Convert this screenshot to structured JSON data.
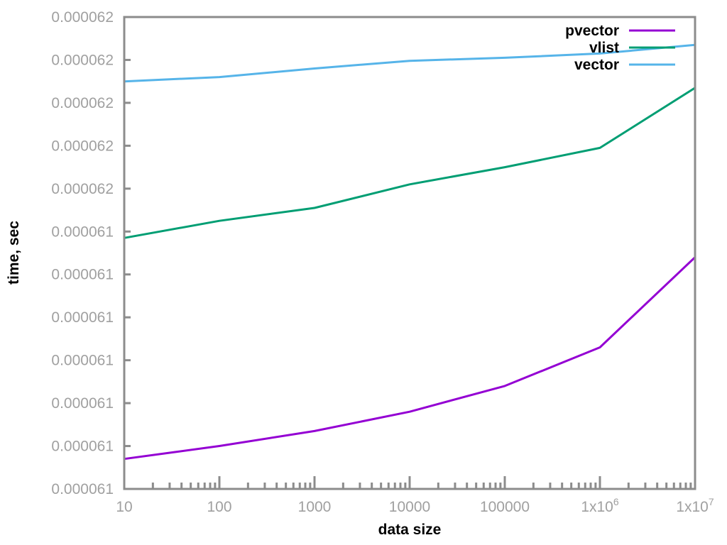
{
  "chart_data": {
    "type": "line",
    "title": "",
    "xlabel": "data size",
    "ylabel": "time, sec",
    "x_scale": "log",
    "xlim": [
      10,
      10000000
    ],
    "x": [
      10,
      100,
      1000,
      10000,
      100000,
      1000000,
      10000000
    ],
    "x_ticks": [
      {
        "value": 10,
        "base": "10",
        "exp": ""
      },
      {
        "value": 100,
        "base": "100",
        "exp": ""
      },
      {
        "value": 1000,
        "base": "1000",
        "exp": ""
      },
      {
        "value": 10000,
        "base": "10000",
        "exp": ""
      },
      {
        "value": 100000,
        "base": "100000",
        "exp": ""
      },
      {
        "value": 1000000,
        "base": "1x10",
        "exp": "6"
      },
      {
        "value": 10000000,
        "base": "1x10",
        "exp": "7"
      }
    ],
    "y_tick_labels": [
      "0.000061",
      "0.000061",
      "0.000061",
      "0.000061",
      "0.000061",
      "0.000061",
      "0.000061",
      "0.000062",
      "0.000062",
      "0.000062",
      "0.000062",
      "0.000062"
    ],
    "y_ticks": [
      0,
      1,
      2,
      3,
      4,
      5,
      6,
      7,
      8,
      9,
      10,
      11
    ],
    "ylim": [
      0,
      11
    ],
    "y_note": "y values are in tick-interval units above the lowest tick (tick labels are rounded and identical)",
    "grid": false,
    "legend_position": "top-right",
    "series": [
      {
        "name": "pvector",
        "color": "#9400d3",
        "values": [
          0.7,
          1.0,
          1.35,
          1.8,
          2.4,
          3.3,
          5.4
        ]
      },
      {
        "name": "vlist",
        "color": "#009e73",
        "values": [
          5.85,
          6.25,
          6.55,
          7.1,
          7.5,
          7.95,
          9.35
        ]
      },
      {
        "name": "vector",
        "color": "#56b4e9",
        "values": [
          9.5,
          9.6,
          9.8,
          9.98,
          10.05,
          10.15,
          10.35
        ]
      }
    ]
  }
}
